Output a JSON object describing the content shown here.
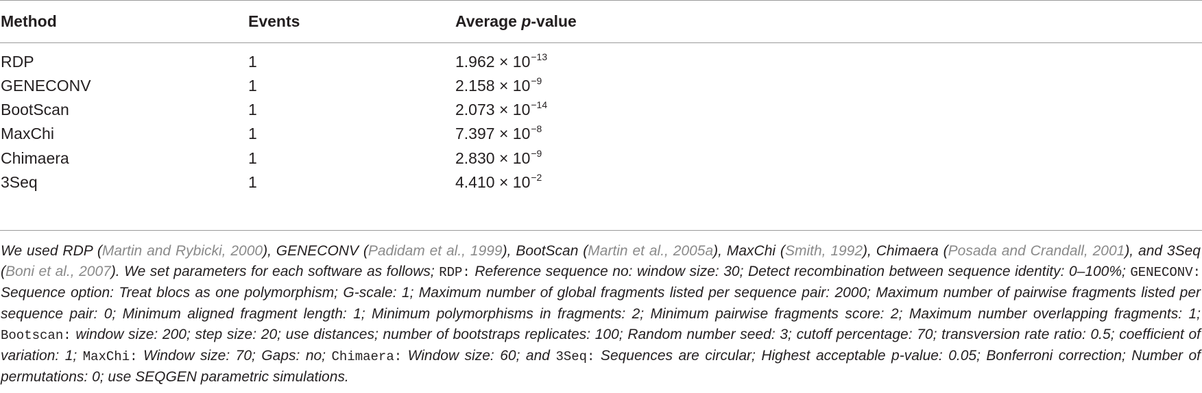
{
  "table": {
    "headers": {
      "method": "Method",
      "events": "Events",
      "pvalue_prefix": "Average ",
      "pvalue_italic": "p",
      "pvalue_suffix": "-value"
    },
    "rows": [
      {
        "method": "RDP",
        "events": "1",
        "mantissa": "1.962",
        "times": "×",
        "base": "10",
        "exponent": "−13"
      },
      {
        "method": "GENECONV",
        "events": "1",
        "mantissa": "2.158",
        "times": "×",
        "base": "10",
        "exponent": "−9"
      },
      {
        "method": "BootScan",
        "events": "1",
        "mantissa": "2.073",
        "times": "×",
        "base": "10",
        "exponent": "−14"
      },
      {
        "method": "MaxChi",
        "events": "1",
        "mantissa": "7.397",
        "times": "×",
        "base": "10",
        "exponent": "−8"
      },
      {
        "method": "Chimaera",
        "events": "1",
        "mantissa": "2.830",
        "times": "×",
        "base": "10",
        "exponent": "−9"
      },
      {
        "method": "3Seq",
        "events": "1",
        "mantissa": "4.410",
        "times": "×",
        "base": "10",
        "exponent": "−2"
      }
    ]
  },
  "footnote": {
    "s01": "We used RDP (",
    "r01": "Martin and Rybicki, 2000",
    "s02": "), GENECONV (",
    "r02": "Padidam et al., 1999",
    "s03": "), BootScan (",
    "r03": "Martin et al., 2005a",
    "s04": "), MaxChi (",
    "r04": "Smith, 1992",
    "s05": "), Chimaera (",
    "r05": "Posada and Crandall, 2001",
    "s06": "), and 3Seq (",
    "r06": "Boni et al., 2007",
    "s07": "). We set parameters for each software as follows; ",
    "m01": "RDP:",
    "s08": " Reference sequence no: window size: 30; Detect recombination between sequence identity: 0–100%; ",
    "m02": "GENECONV:",
    "s09": " Sequence option: Treat blocs as one polymorphism; G-scale: 1; Maximum number of global fragments listed per sequence pair: 2000; Maximum number of pairwise fragments listed per sequence pair: 0; Minimum aligned fragment length: 1; Minimum polymorphisms in fragments: 2; Minimum pairwise fragments score: 2; Maximum number overlapping fragments: 1; ",
    "m03": "Bootscan:",
    "s10": " window size: 200; step size: 20; use distances; number of bootstraps replicates: 100; Random number seed: 3; cutoff percentage: 70; transversion rate ratio: 0.5; coefficient of variation: 1; ",
    "m04": "MaxChi:",
    "s11": " Window size: 70; Gaps: no; ",
    "m05": "Chimaera:",
    "s12": " Window size: 60; and ",
    "m06": "3Seq:",
    "s13": " Sequences are circular; Highest acceptable p-value: 0.05; Bonferroni correction; Number of permutations: 0; use SEQGEN parametric simulations."
  }
}
